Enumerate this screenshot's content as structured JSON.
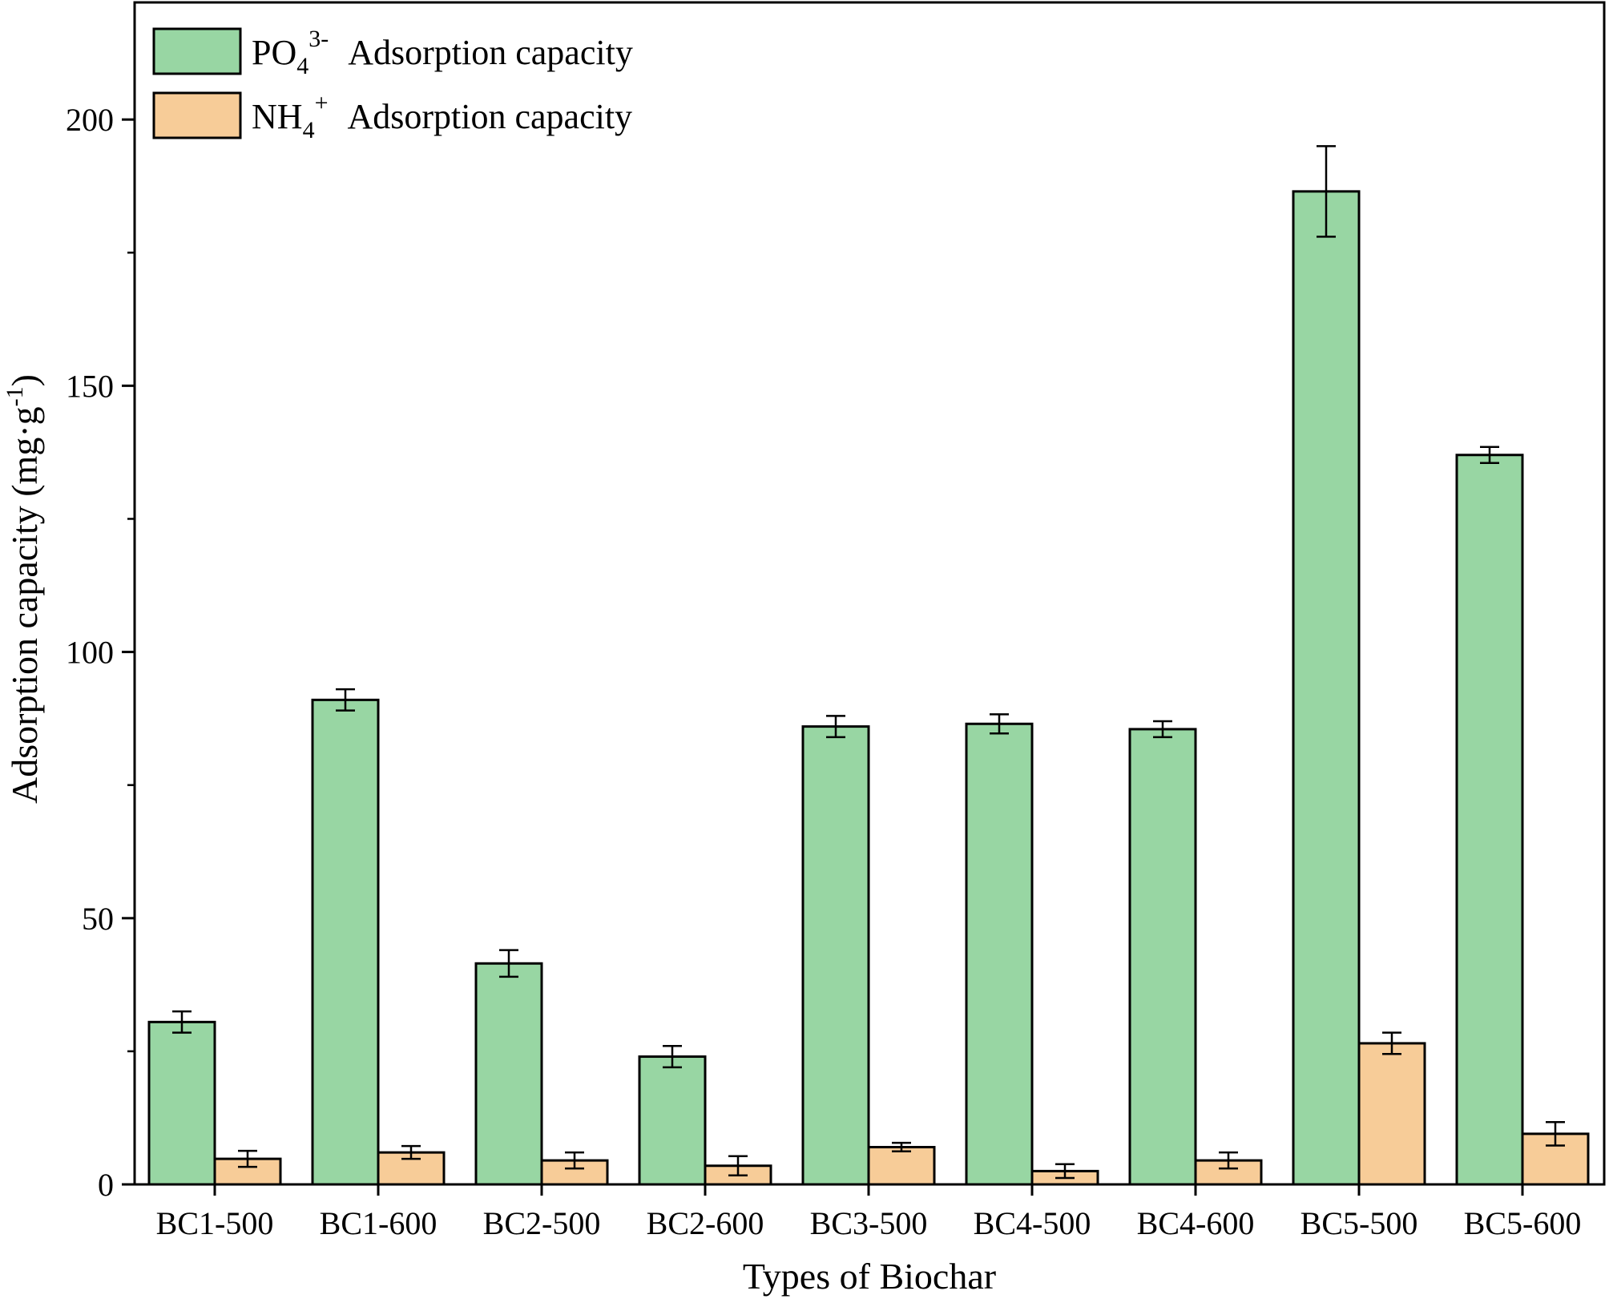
{
  "chart_data": {
    "type": "bar",
    "title": "",
    "xlabel": "Types of Biochar",
    "ylabel": "Adsorption capacity (mg·g⁻¹)",
    "ylabel_parts": {
      "main": "Adsorption capacity (mg·g",
      "sup": "-1",
      "close": ")"
    },
    "ylim": [
      0,
      222
    ],
    "yticks": [
      0,
      50,
      100,
      150,
      200
    ],
    "grid": false,
    "legend_position": "top-left",
    "categories": [
      "BC1-500",
      "BC1-600",
      "BC2-500",
      "BC2-600",
      "BC3-500",
      "BC4-500",
      "BC4-600",
      "BC5-500",
      "BC5-600"
    ],
    "series": [
      {
        "name": "PO₄³⁻ Adsorption capacity",
        "label_base": "PO",
        "label_sub": "4",
        "label_sup": "3-",
        "label_rest": "Adsorption capacity",
        "color": "#98d6a3",
        "values": [
          30.5,
          91,
          41.5,
          24,
          86,
          86.5,
          85.5,
          186.5,
          137
        ],
        "errors": [
          2,
          2,
          2.5,
          2,
          2,
          1.8,
          1.5,
          8.5,
          1.5
        ]
      },
      {
        "name": "NH₄⁺ Adsorption capacity",
        "label_base": "NH",
        "label_sub": "4",
        "label_sup": "+",
        "label_rest": "Adsorption capacity",
        "color": "#f7cc98",
        "values": [
          4.8,
          6,
          4.5,
          3.5,
          7,
          2.5,
          4.5,
          26.5,
          9.5
        ],
        "errors": [
          1.5,
          1.2,
          1.5,
          1.8,
          0.8,
          1.3,
          1.5,
          2,
          2.2
        ]
      }
    ]
  }
}
